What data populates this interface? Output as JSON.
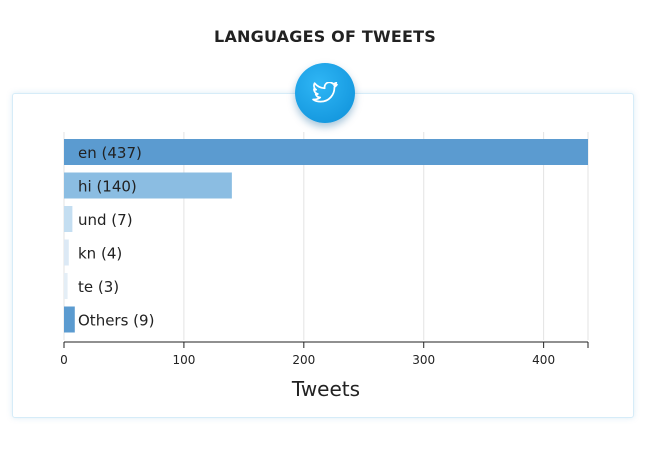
{
  "page": {
    "title": "LANGUAGES OF TWEETS"
  },
  "badge": {
    "icon": "twitter-bird-icon",
    "color": "#1da1f2"
  },
  "chart_data": {
    "type": "bar",
    "orientation": "horizontal",
    "title": "",
    "xlabel": "Tweets",
    "ylabel": "",
    "xlim": [
      0,
      437
    ],
    "xticks": [
      0,
      100,
      200,
      300,
      400
    ],
    "grid": true,
    "bar_labels": [
      "en (437)",
      "hi (140)",
      "und (7)",
      "kn (4)",
      "te (3)",
      "Others (9)"
    ],
    "categories": [
      "en",
      "hi",
      "und",
      "kn",
      "te",
      "Others"
    ],
    "values": [
      437,
      140,
      7,
      4,
      3,
      9
    ],
    "colors": [
      "#5b9bd0",
      "#8bbde2",
      "#c4def1",
      "#dce9f5",
      "#e4eef6",
      "#5b9bd0"
    ]
  }
}
